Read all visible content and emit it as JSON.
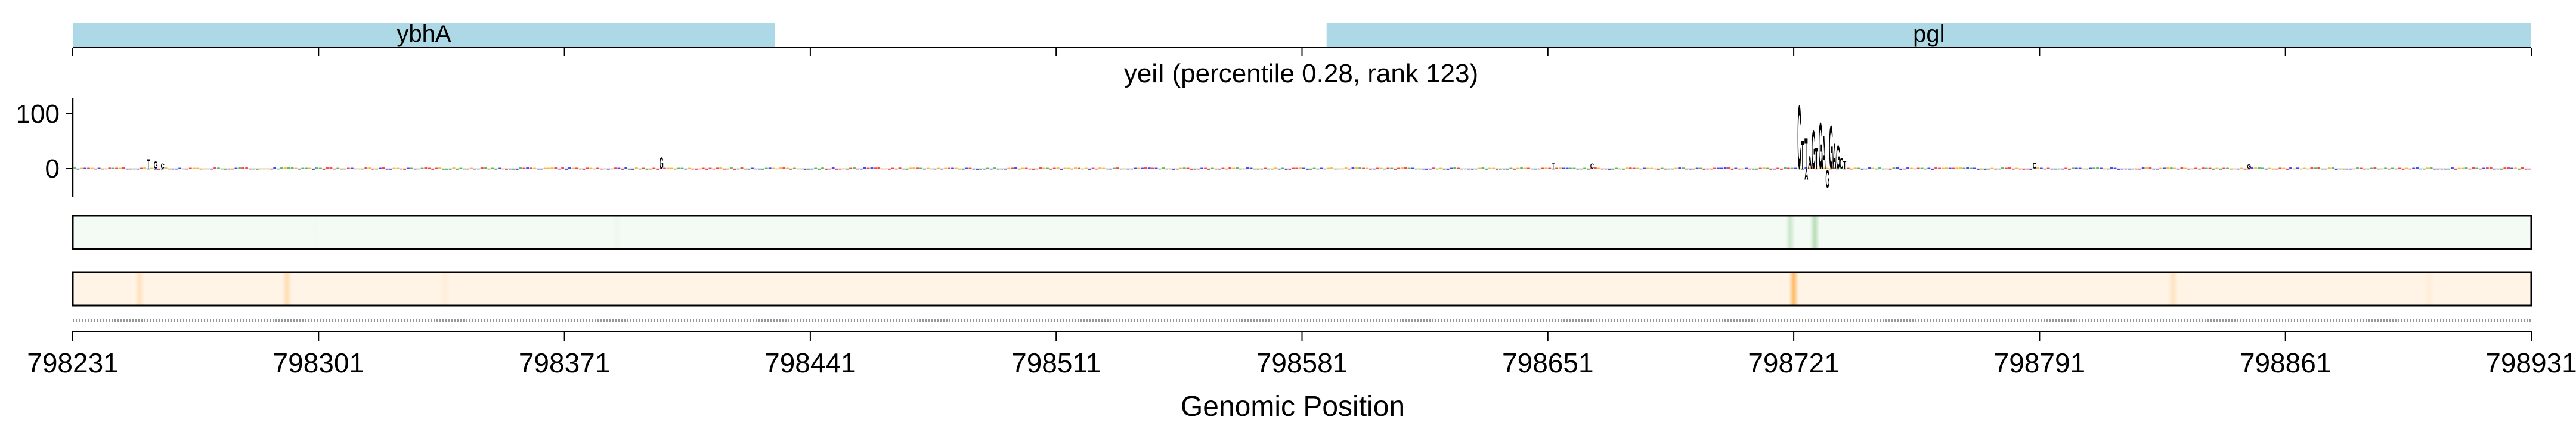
{
  "chart_data": {
    "type": "genome-track",
    "title": "yeiI (percentile 0.28, rank 123)",
    "xlabel": "Genomic Position",
    "ylabel": "",
    "xlim": [
      798231,
      798931
    ],
    "x_ticks": [
      "798231",
      "798301",
      "798371",
      "798441",
      "798511",
      "798581",
      "798651",
      "798721",
      "798791",
      "798861",
      "798931"
    ],
    "y_ticks": [
      "100",
      "0"
    ],
    "ylim": [
      -45,
      130
    ],
    "genes": [
      {
        "name": "ybhA",
        "start": 798231,
        "end": 798431,
        "color": "#add8e6"
      },
      {
        "name": "pgl",
        "start": 798588,
        "end": 798931,
        "color": "#add8e6"
      }
    ],
    "base_colors": {
      "A": "#2ca02c",
      "C": "#0000ff",
      "G": "#ffa500",
      "T": "#ff0000"
    },
    "logo_peaks": [
      {
        "position": 798722,
        "value": 125,
        "base": "C"
      },
      {
        "position": 798723,
        "value": 55,
        "base": "T"
      },
      {
        "position": 798724,
        "value": 60,
        "base": "T"
      },
      {
        "position": 798725,
        "value": 25,
        "base": "A"
      },
      {
        "position": 798726,
        "value": 75,
        "base": "G"
      },
      {
        "position": 798727,
        "value": 40,
        "base": "T"
      },
      {
        "position": 798728,
        "value": 90,
        "base": "G"
      },
      {
        "position": 798729,
        "value": 65,
        "base": "A"
      },
      {
        "position": 798730,
        "value": -35,
        "base": "G"
      },
      {
        "position": 798731,
        "value": 85,
        "base": "G"
      },
      {
        "position": 798732,
        "value": 50,
        "base": "A"
      },
      {
        "position": 798733,
        "value": 45,
        "base": "G"
      },
      {
        "position": 798734,
        "value": 20,
        "base": "C"
      },
      {
        "position": 798724,
        "value": -20,
        "base": "A"
      },
      {
        "position": 798735,
        "value": 15,
        "base": "T"
      },
      {
        "position": 798252,
        "value": 18,
        "base": "T"
      },
      {
        "position": 798254,
        "value": 14,
        "base": "G"
      },
      {
        "position": 798256,
        "value": 10,
        "base": "C"
      },
      {
        "position": 798398,
        "value": 22,
        "base": "G"
      },
      {
        "position": 798652,
        "value": 12,
        "base": "T"
      },
      {
        "position": 798663,
        "value": 10,
        "base": "C"
      },
      {
        "position": 798789,
        "value": 12,
        "base": "C"
      },
      {
        "position": 798850,
        "value": 8,
        "base": "G"
      }
    ],
    "heatmap_green": {
      "color": "#2ca02c",
      "hotspots": [
        {
          "position": 798720,
          "intensity": 0.25
        },
        {
          "position": 798727,
          "intensity": 0.35
        },
        {
          "position": 798386,
          "intensity": 0.08
        },
        {
          "position": 798300,
          "intensity": 0.06
        }
      ]
    },
    "heatmap_orange": {
      "color": "#ff8c00",
      "hotspots": [
        {
          "position": 798250,
          "intensity": 0.25
        },
        {
          "position": 798292,
          "intensity": 0.3
        },
        {
          "position": 798337,
          "intensity": 0.15
        },
        {
          "position": 798721,
          "intensity": 0.6
        },
        {
          "position": 798829,
          "intensity": 0.25
        },
        {
          "position": 798902,
          "intensity": 0.15
        }
      ]
    },
    "grid": false,
    "legend": "none"
  }
}
